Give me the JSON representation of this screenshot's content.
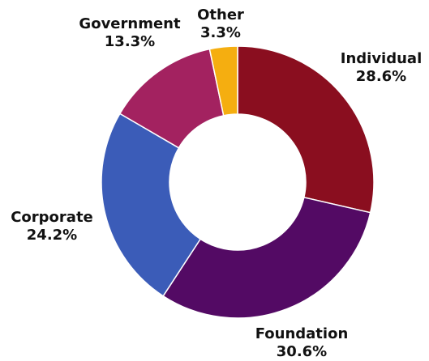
{
  "chart_data": {
    "type": "pie",
    "variant": "donut",
    "title": "",
    "legend": "none",
    "slices": [
      {
        "label": "Individual",
        "value": 28.6,
        "value_label": "28.6%",
        "color": "#8a0e1f"
      },
      {
        "label": "Foundation",
        "value": 30.6,
        "value_label": "30.6%",
        "color": "#530a64"
      },
      {
        "label": "Corporate",
        "value": 24.2,
        "value_label": "24.2%",
        "color": "#3b5cb8"
      },
      {
        "label": "Government",
        "value": 13.3,
        "value_label": "13.3%",
        "color": "#a32260"
      },
      {
        "label": "Other",
        "value": 3.3,
        "value_label": "3.3%",
        "color": "#f5ae10"
      }
    ]
  }
}
